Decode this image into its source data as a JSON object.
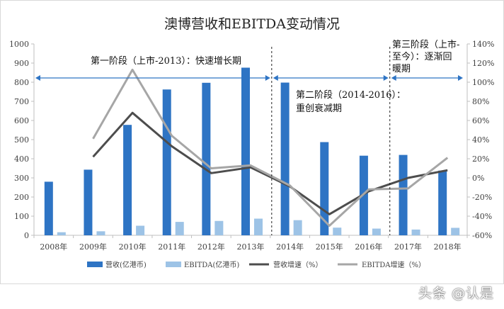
{
  "chart_data": {
    "type": "bar",
    "title": "澳博营收和EBITDA变动情况",
    "categories": [
      "2008年",
      "2009年",
      "2010年",
      "2011年",
      "2012年",
      "2013年",
      "2014年",
      "2015年",
      "2016年",
      "2017年",
      "2018年"
    ],
    "y_left_ticks": [
      0,
      100,
      200,
      300,
      400,
      500,
      600,
      700,
      800,
      900,
      1000
    ],
    "y_right_ticks": [
      "-60%",
      "-40%",
      "-20%",
      "0%",
      "20%",
      "40%",
      "60%",
      "80%",
      "100%",
      "120%",
      "140%"
    ],
    "ylim_left": [
      0,
      1000
    ],
    "ylim_right": [
      -60,
      140
    ],
    "series": [
      {
        "name": "营收(亿港币)",
        "type": "bar",
        "axis": "left",
        "color": "#2e74c4",
        "values": [
          280,
          343,
          577,
          762,
          797,
          876,
          798,
          487,
          416,
          420,
          338
        ]
      },
      {
        "name": "EBITDA(亿港币)",
        "type": "bar",
        "axis": "left",
        "color": "#9dc3e6",
        "values": [
          16,
          21,
          50,
          70,
          75,
          87,
          79,
          40,
          35,
          30,
          39
        ]
      },
      {
        "name": "营收增速（%）",
        "type": "line",
        "axis": "right",
        "color": "#4d4d4d",
        "values": [
          null,
          22,
          68,
          33,
          5,
          11,
          -9,
          -38,
          -14,
          0,
          8
        ]
      },
      {
        "name": "EBITDA增速（%）",
        "type": "line",
        "axis": "right",
        "color": "#a6a6a6",
        "values": [
          null,
          41,
          113,
          44,
          10,
          13,
          -8,
          -50,
          -12,
          -11,
          21
        ]
      }
    ],
    "annotations": [
      {
        "text_lines": [
          "第一阶段（上市-2013）：快速增长期"
        ]
      },
      {
        "text_lines": [
          "第二阶段（2014-2016）：",
          "重创衰减期"
        ]
      },
      {
        "text_lines": [
          "第三阶段（上市-",
          "至今）：逐渐回",
          "暖期"
        ]
      }
    ],
    "grid": false,
    "legend": "bottom"
  },
  "watermark": "头条 @认是"
}
